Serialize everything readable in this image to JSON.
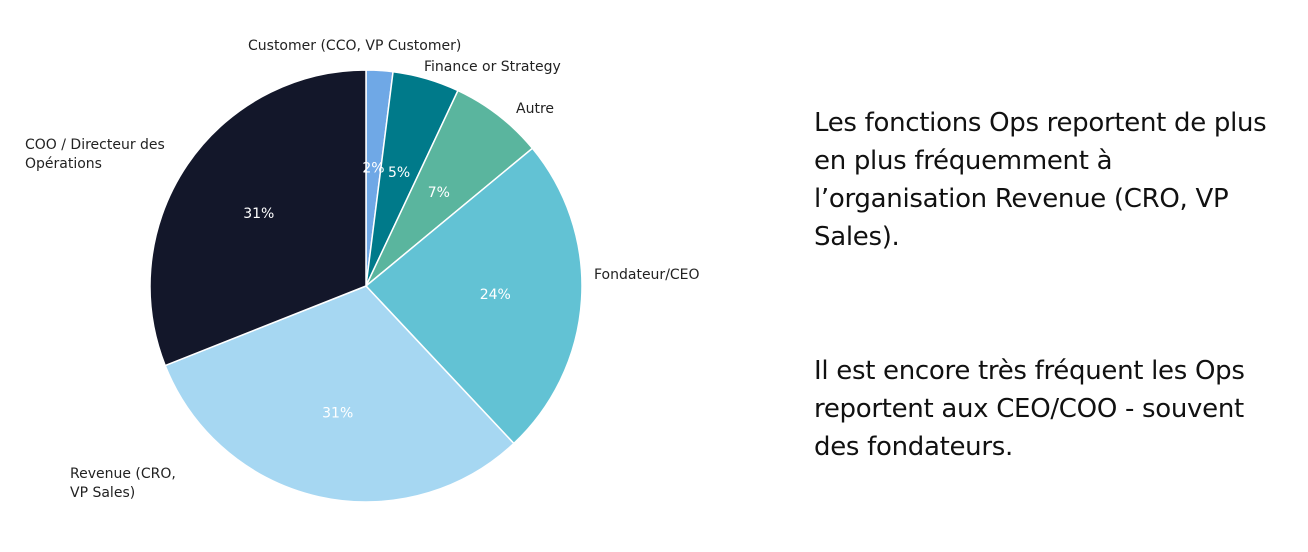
{
  "chart_data": {
    "type": "pie",
    "title": "",
    "slices": [
      {
        "label": "Customer (CCO, VP Customer)",
        "value": 2,
        "value_label": "2%",
        "color": "#6fa8e6"
      },
      {
        "label": "Finance or Strategy",
        "value": 5,
        "value_label": "5%",
        "color": "#007a8a"
      },
      {
        "label": "Autre",
        "value": 7,
        "value_label": "7%",
        "color": "#5ab59e"
      },
      {
        "label": "Fondateur/CEO",
        "value": 24,
        "value_label": "24%",
        "color": "#62c2d4"
      },
      {
        "label": "Revenue (CRO, VP Sales)",
        "value": 31,
        "value_label": "31%",
        "color": "#a6d7f2"
      },
      {
        "label": "COO / Directeur des Opérations",
        "value": 31,
        "value_label": "31%",
        "color": "#13172a"
      }
    ],
    "category_label_lines": [
      [
        "Customer (CCO, VP Customer)"
      ],
      [
        "Finance or Strategy"
      ],
      [
        "Autre"
      ],
      [
        "Fondateur/CEO"
      ],
      [
        "Revenue (CRO,",
        "VP Sales)"
      ],
      [
        "COO / Directeur des",
        "Opérations"
      ]
    ]
  },
  "notes": [
    "Les fonctions Ops reportent de plus en plus fréquemment à l’organisation Revenue (CRO, VP Sales).",
    "Il est encore très fréquent les Ops reportent aux CEO/COO - souvent des fondateurs."
  ]
}
